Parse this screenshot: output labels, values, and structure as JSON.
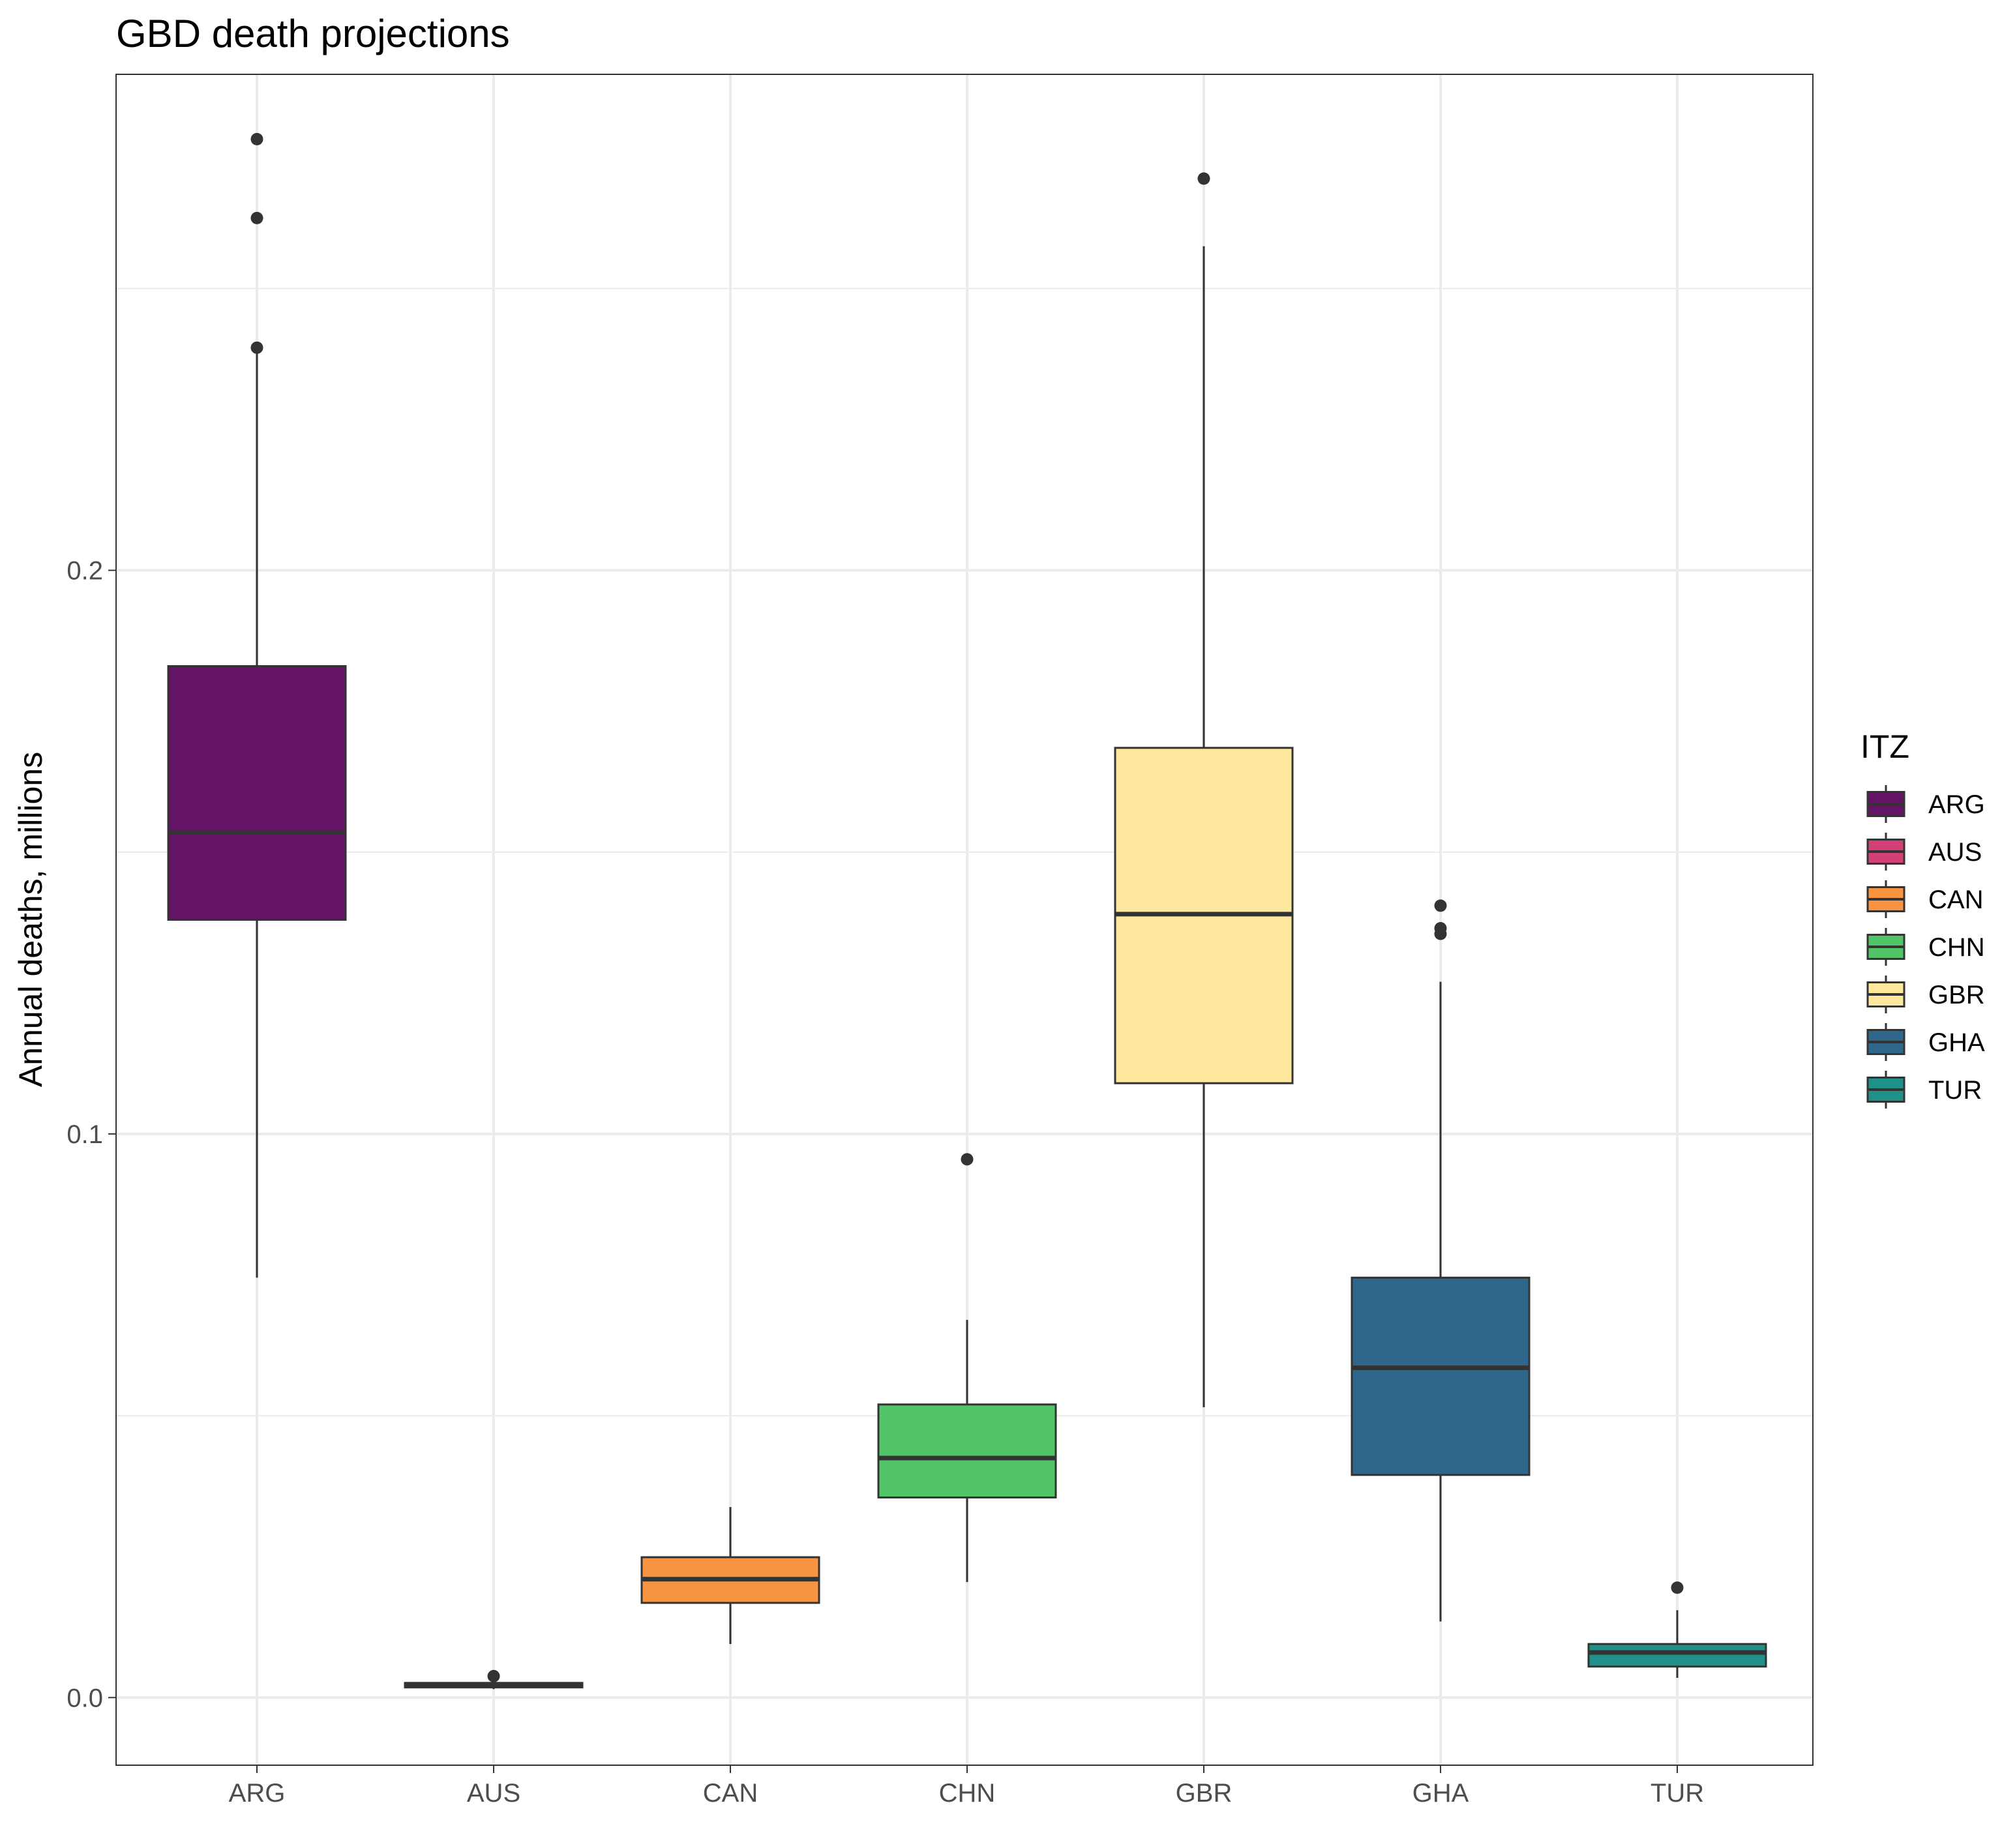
{
  "chart_data": {
    "type": "boxplot",
    "title": "GBD death projections",
    "xlabel": "",
    "ylabel": "Annual deaths, millions",
    "ylim": [
      -0.012,
      0.288
    ],
    "yticks": [
      0.0,
      0.1,
      0.2
    ],
    "ytick_labels": [
      "0.0",
      "0.1",
      "0.2"
    ],
    "grid": true,
    "legend": {
      "title": "ITZ",
      "position": "right"
    },
    "categories": [
      "ARG",
      "AUS",
      "CAN",
      "CHN",
      "GBR",
      "GHA",
      "TUR"
    ],
    "series": [
      {
        "name": "ARG",
        "color": "#641466",
        "whisker_low": 0.0745,
        "q1": 0.138,
        "median": 0.1535,
        "q3": 0.183,
        "whisker_high": 0.2405,
        "outliers": [
          0.2395,
          0.2625,
          0.2765
        ]
      },
      {
        "name": "AUS",
        "color": "#D43F78",
        "whisker_low": 0.0015,
        "q1": 0.0018,
        "median": 0.0023,
        "q3": 0.0026,
        "whisker_high": 0.0032,
        "outliers": [
          0.0038
        ]
      },
      {
        "name": "CAN",
        "color": "#F89441",
        "whisker_low": 0.0095,
        "q1": 0.0168,
        "median": 0.021,
        "q3": 0.0249,
        "whisker_high": 0.0338,
        "outliers": []
      },
      {
        "name": "CHN",
        "color": "#52C569",
        "whisker_low": 0.0205,
        "q1": 0.0355,
        "median": 0.0425,
        "q3": 0.052,
        "whisker_high": 0.067,
        "outliers": [
          0.0955
        ]
      },
      {
        "name": "GBR",
        "color": "#FEE89E",
        "whisker_low": 0.0515,
        "q1": 0.109,
        "median": 0.139,
        "q3": 0.1685,
        "whisker_high": 0.2575,
        "outliers": [
          0.2695
        ]
      },
      {
        "name": "GHA",
        "color": "#2F678C",
        "whisker_low": 0.0135,
        "q1": 0.0395,
        "median": 0.0585,
        "q3": 0.0745,
        "whisker_high": 0.127,
        "outliers": [
          0.1355,
          0.1365,
          0.1405
        ]
      },
      {
        "name": "TUR",
        "color": "#1F9188",
        "whisker_low": 0.0035,
        "q1": 0.0055,
        "median": 0.008,
        "q3": 0.0095,
        "whisker_high": 0.0155,
        "outliers": [
          0.0195
        ]
      }
    ]
  }
}
